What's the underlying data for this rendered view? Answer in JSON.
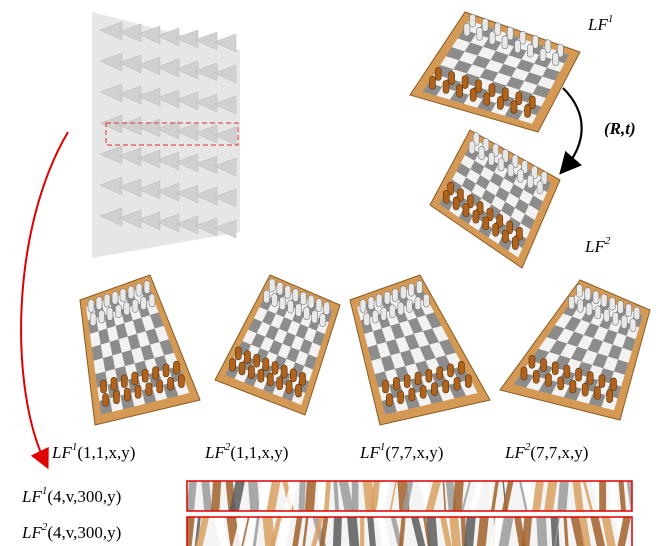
{
  "top_labels": {
    "lf1": {
      "base": "LF",
      "sup": "1"
    },
    "motion": "(R,t)",
    "lf2": {
      "base": "LF",
      "sup": "2"
    }
  },
  "view_labels": [
    {
      "base": "LF",
      "sup": "1",
      "args": "(1,1,x,y)"
    },
    {
      "base": "LF",
      "sup": "2",
      "args": "(1,1,x,y)"
    },
    {
      "base": "LF",
      "sup": "1",
      "args": "(7,7,x,y)"
    },
    {
      "base": "LF",
      "sup": "2",
      "args": "(7,7,x,y)"
    }
  ],
  "slice_labels": [
    {
      "base": "LF",
      "sup": "1",
      "args": "(4,v,300,y)"
    },
    {
      "base": "LF",
      "sup": "2",
      "args": "(4,v,300,y)"
    }
  ]
}
